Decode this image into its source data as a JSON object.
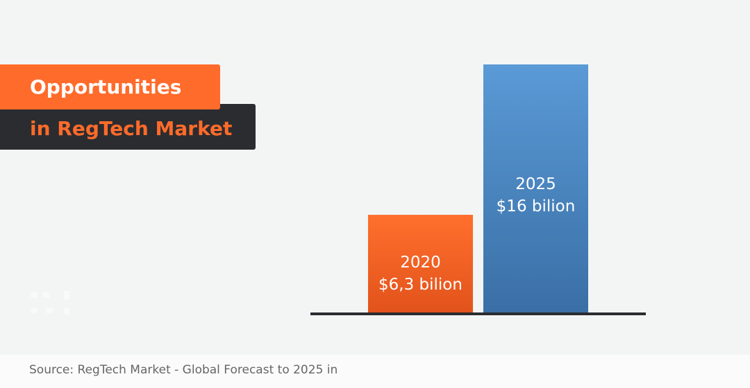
{
  "title": {
    "line1": "Opportunities",
    "line2": "in RegTech Market"
  },
  "source": "Source: RegTech Market - Global Forecast to 2025 in",
  "colors": {
    "accent": "#ff6b2a",
    "dark": "#2b2c2f",
    "blue": "#4a8ac8"
  },
  "chart_data": {
    "type": "bar",
    "categories": [
      "2020",
      "2025"
    ],
    "values": [
      6.3,
      16
    ],
    "data_labels": [
      [
        "2020",
        "$6,3 bilion"
      ],
      [
        "2025",
        "$16 bilion"
      ]
    ],
    "colors": [
      "#ff6b2a",
      "#4a8ac8"
    ],
    "ylim": [
      0,
      16
    ],
    "grid": false,
    "unit": "$ billion"
  }
}
